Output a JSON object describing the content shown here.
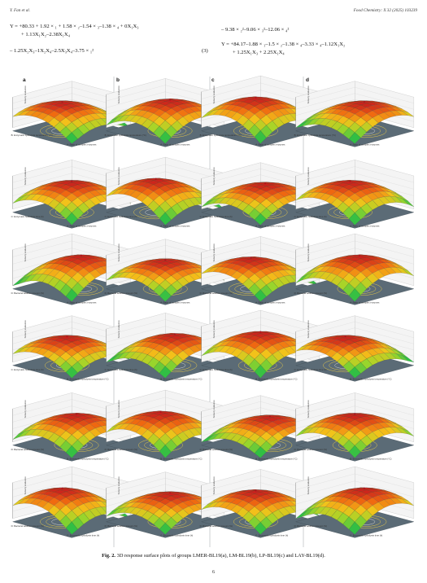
{
  "header": {
    "left": "Y. Fan et al.",
    "right": "Food Chemistry: X 32 (2025) 103239"
  },
  "equations": {
    "left_line1": "Y = +80.33 + 1.92 × ₁ + 1.58 × ₂–1.54 × ₃–1.38 × ₄ + 0X₁X₃",
    "left_line2": "+ 1.13X₁X₂–2.38X₁X₄",
    "left_line3": "– 1.25X₂X₃–1X₂X₄–2.5X₃X₄–3.75 × ₁²",
    "left_number": "(3)",
    "right_line1": "– 9.38 × ₂²–9.06 × ₃²–12.06 × ₄²",
    "right_line2": "Y = +84.17–1.88 × ₁–1.5 × ₂–1.38 × ₄–3.33 × ₄–1.12X₁X₂",
    "right_line3": "+ 1.25X₁X₃ + 2.25X₁X₄"
  },
  "panels": {
    "column_labels": [
      "a",
      "b",
      "c",
      "d"
    ],
    "z_axis_label": "Sensory evaluation",
    "axis_labels": [
      [
        "B: Enzymatic hydrolysis temperature (°C)",
        "A: Ratio of complex enzymes"
      ],
      [
        "C: Enzymatic hydrolysis time (h)",
        "A: Ratio of complex enzymes"
      ],
      [
        "D: Bacterial addition amount (%)",
        "A: Ratio of complex enzymes"
      ],
      [
        "C: Enzymatic hydrolysis time (h)",
        "B: Enzymatic hydrolysis temperature (°C)"
      ],
      [
        "D: Bacterial addition amount (%)",
        "B: Enzymatic hydrolysis temperature (°C)"
      ],
      [
        "D: Bacterial addition amount (%)",
        "C: Enzymatic hydrolysis time (h)"
      ]
    ]
  },
  "caption": {
    "label": "Fig. 2.",
    "text": "3D response surface plots of groups LMER-BL19(a), LM-BL19(b), LP-BL19(c) and LAY-BL19(d)."
  },
  "page_number": "6",
  "colors": {
    "surface_high": "#c81e1e",
    "surface_mid": "#f3c21a",
    "surface_low": "#2fbf45",
    "floor": "#5b6b76",
    "contour": "#e6c84a",
    "design_point": "#b0141e"
  }
}
